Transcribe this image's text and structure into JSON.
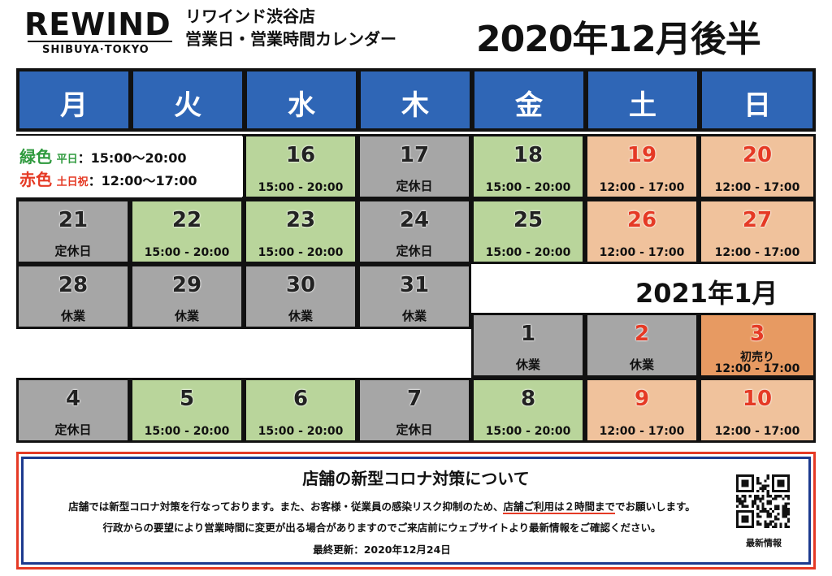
{
  "brand": {
    "logo": "REWIND",
    "sub": "SHIBUYA·TOKYO"
  },
  "store": {
    "line1": "リワインド渋谷店",
    "line2": "営業日・営業時間カレンダー"
  },
  "title": "2020年12月後半",
  "jan_title": "2021年1月",
  "weekdays": [
    "月",
    "火",
    "水",
    "木",
    "金",
    "土",
    "日"
  ],
  "legend": {
    "green_color_label": "緑色",
    "green_days": "平日",
    "green_hours": "：15:00〜20:00",
    "red_color_label": "赤色",
    "red_days": "土日祝",
    "red_hours": "：12:00〜17:00"
  },
  "days": [
    {
      "n": "16",
      "t": "15:00 - 20:00"
    },
    {
      "n": "17",
      "t": "定休日"
    },
    {
      "n": "18",
      "t": "15:00 - 20:00"
    },
    {
      "n": "19",
      "t": "12:00 - 17:00"
    },
    {
      "n": "20",
      "t": "12:00 - 17:00"
    },
    {
      "n": "21",
      "t": "定休日"
    },
    {
      "n": "22",
      "t": "15:00 - 20:00"
    },
    {
      "n": "23",
      "t": "15:00 - 20:00"
    },
    {
      "n": "24",
      "t": "定休日"
    },
    {
      "n": "25",
      "t": "15:00 - 20:00"
    },
    {
      "n": "26",
      "t": "12:00 - 17:00"
    },
    {
      "n": "27",
      "t": "12:00 - 17:00"
    },
    {
      "n": "28",
      "t": "休業"
    },
    {
      "n": "29",
      "t": "休業"
    },
    {
      "n": "30",
      "t": "休業"
    },
    {
      "n": "31",
      "t": "休業"
    },
    {
      "n": "1",
      "t": "休業"
    },
    {
      "n": "2",
      "t": "休業"
    },
    {
      "n": "3",
      "t": "初売り",
      "t2": "12:00 - 17:00"
    },
    {
      "n": "4",
      "t": "定休日"
    },
    {
      "n": "5",
      "t": "15:00 - 20:00"
    },
    {
      "n": "6",
      "t": "15:00 - 20:00"
    },
    {
      "n": "7",
      "t": "定休日"
    },
    {
      "n": "8",
      "t": "15:00 - 20:00"
    },
    {
      "n": "9",
      "t": "12:00 - 17:00"
    },
    {
      "n": "10",
      "t": "12:00 - 17:00"
    }
  ],
  "colors": {
    "header_blue": "#2f66b6",
    "weekday_green": "#b9d59b",
    "closed_gray": "#a6a6a6",
    "weekend_peach": "#f0c29c",
    "special_orange": "#e79a62",
    "red_text": "#e53a25"
  },
  "notice": {
    "title": "店舗の新型コロナ対策について",
    "line1_a": "店舗では新型コロナ対策を行なっております。また、お客様・従業員の感染リスク抑制のため、",
    "line1_b": "店舗ご利用は２時間まで",
    "line1_c": "でお願いします。",
    "line2": "行政からの要望により営業時間に変更が出る場合がありますのでご来店前にウェブサイトより最新情報をご確認ください。",
    "line3": "最終更新：2020年12月24日",
    "qr_label": "最新情報"
  }
}
